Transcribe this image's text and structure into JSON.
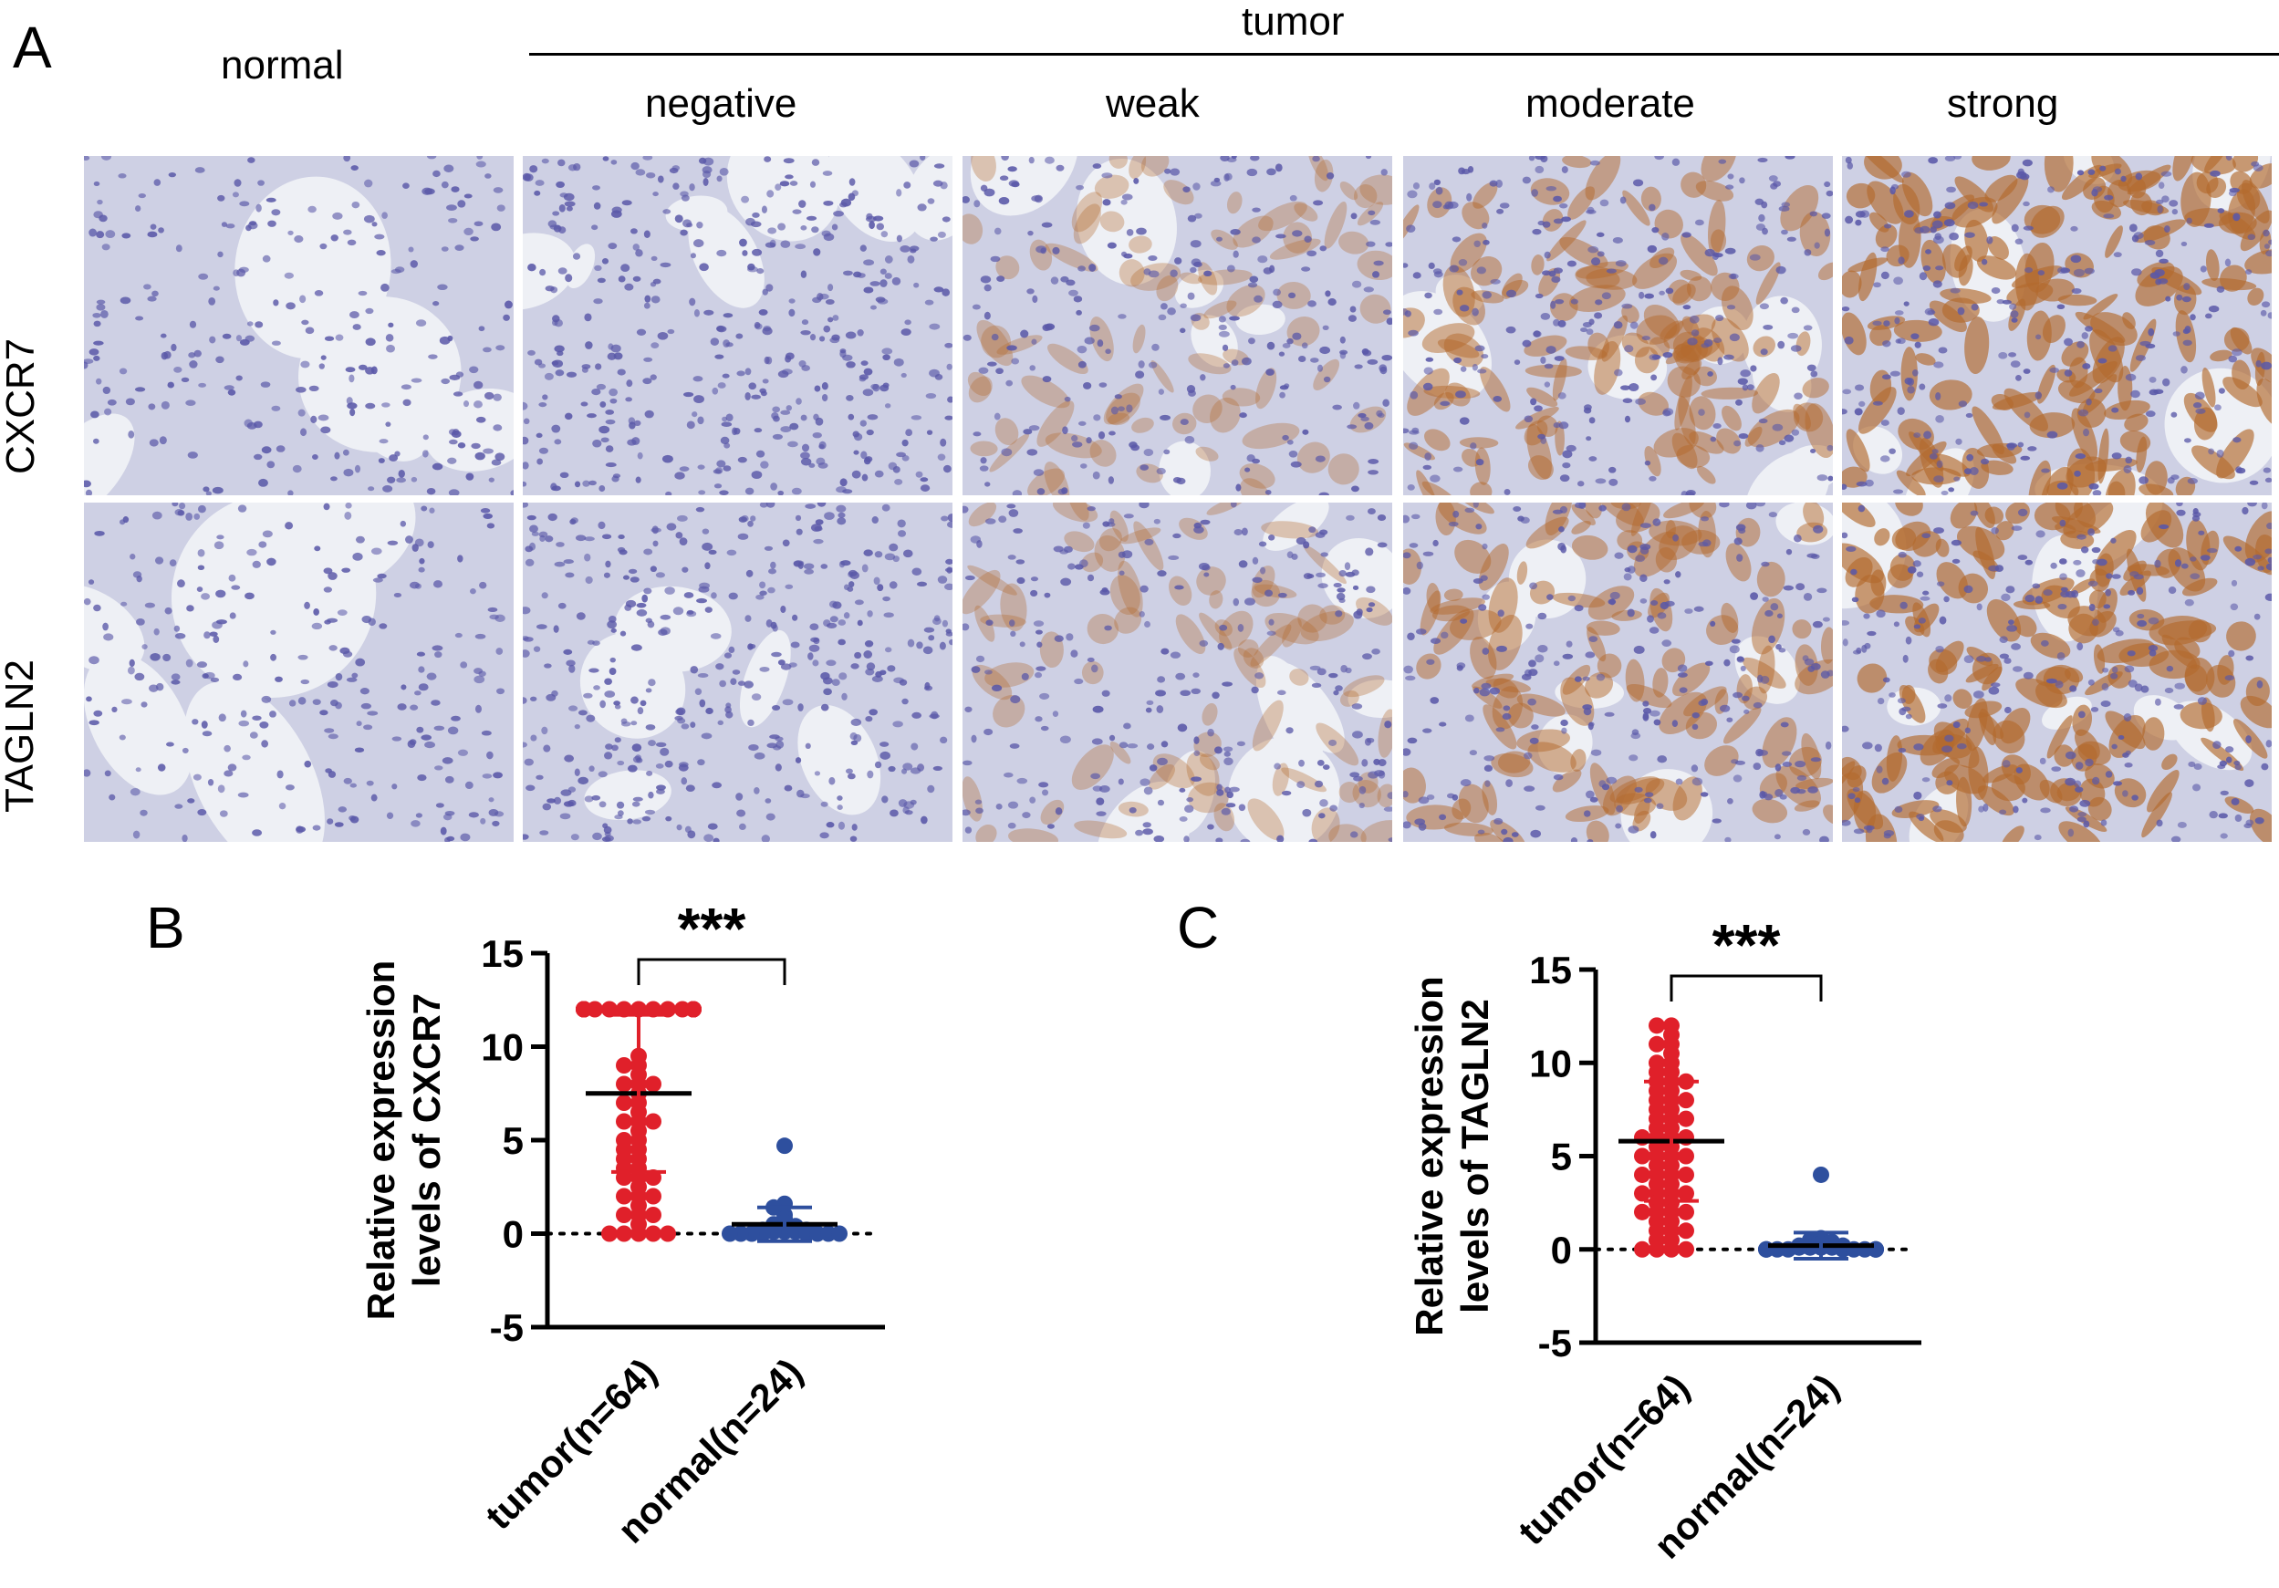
{
  "panels": {
    "a_label": "A",
    "b_label": "B",
    "c_label": "C"
  },
  "micrographs": {
    "normal_header": "normal",
    "tumor_header": "tumor",
    "columns": [
      "negative",
      "weak",
      "moderate",
      "strong"
    ],
    "rows": [
      "CXCR7",
      "TAGLN2"
    ],
    "staining_intensity": [
      [
        0,
        0,
        1,
        2,
        3
      ],
      [
        0,
        0,
        1,
        2,
        3
      ]
    ],
    "colors": {
      "background": "#ced0e4",
      "hematoxylin_nucleus": "#5a58a8",
      "dab_stain": "#b36a2e",
      "lumen": "#eef0f5"
    }
  },
  "chart_data": [
    {
      "type": "scatter",
      "ylabel": "Relative expression levels of CXCR7",
      "categories": [
        "tumor(n=64)",
        "normal(n=24)"
      ],
      "ylim": [
        -5,
        15
      ],
      "yticks": [
        -5,
        0,
        5,
        10,
        15
      ],
      "significance": "***",
      "series": [
        {
          "category": "tumor(n=64)",
          "color": "#e0202a",
          "mean": 7.5,
          "sd": 4.2,
          "n": 64,
          "values": [
            12,
            12,
            12,
            12,
            12,
            12,
            12,
            12,
            12,
            12,
            12,
            12,
            12,
            12,
            12,
            12,
            12,
            12,
            12,
            12,
            12,
            12,
            12,
            12,
            9.5,
            9,
            9,
            8.5,
            8,
            8,
            8,
            7.5,
            7,
            7,
            6.5,
            6,
            6,
            6,
            5.5,
            5,
            5,
            4.5,
            4.5,
            4,
            4,
            3.5,
            3.5,
            3,
            3,
            3,
            2.5,
            2,
            2,
            2,
            1.5,
            1,
            1,
            1,
            0.5,
            0,
            0,
            0,
            0,
            0
          ]
        },
        {
          "category": "normal(n=24)",
          "color": "#2e4f9e",
          "mean": 0.5,
          "sd": 0.9,
          "n": 24,
          "values": [
            4.7,
            1.6,
            1.4,
            1,
            0.8,
            0.6,
            0.5,
            0.4,
            0.3,
            0.3,
            0.2,
            0.2,
            0.2,
            0.1,
            0.1,
            0.1,
            0,
            0,
            0,
            0,
            0,
            0,
            0,
            0
          ]
        }
      ]
    },
    {
      "type": "scatter",
      "ylabel": "Relative expression levels of TAGLN2",
      "categories": [
        "tumor(n=64)",
        "normal(n=24)"
      ],
      "ylim": [
        -5,
        15
      ],
      "yticks": [
        -5,
        0,
        5,
        10,
        15
      ],
      "significance": "***",
      "series": [
        {
          "category": "tumor(n=64)",
          "color": "#e0202a",
          "mean": 5.8,
          "sd": 3.2,
          "n": 64,
          "values": [
            12,
            12,
            11.5,
            11,
            11,
            10.5,
            10,
            10,
            9.5,
            9.5,
            9,
            9,
            9,
            8.5,
            8.5,
            8,
            8,
            8,
            7.5,
            7.5,
            7,
            7,
            7,
            6.5,
            6.5,
            6,
            6,
            6,
            6,
            5.5,
            5.5,
            5,
            5,
            5,
            5,
            4.5,
            4.5,
            4,
            4,
            4,
            4,
            3.5,
            3.5,
            3,
            3,
            3,
            3,
            2.5,
            2.5,
            2,
            2,
            2,
            2,
            1.5,
            1.5,
            1,
            1,
            1,
            0.5,
            0.5,
            0,
            0,
            0,
            0
          ]
        },
        {
          "category": "normal(n=24)",
          "color": "#2e4f9e",
          "mean": 0.2,
          "sd": 0.7,
          "n": 24,
          "values": [
            4,
            0.6,
            0.5,
            0.4,
            0.3,
            0.3,
            0.2,
            0.2,
            0.2,
            0.1,
            0.1,
            0.1,
            0.1,
            0,
            0,
            0,
            0,
            0,
            0,
            0,
            0,
            0,
            0,
            0
          ]
        }
      ]
    }
  ]
}
